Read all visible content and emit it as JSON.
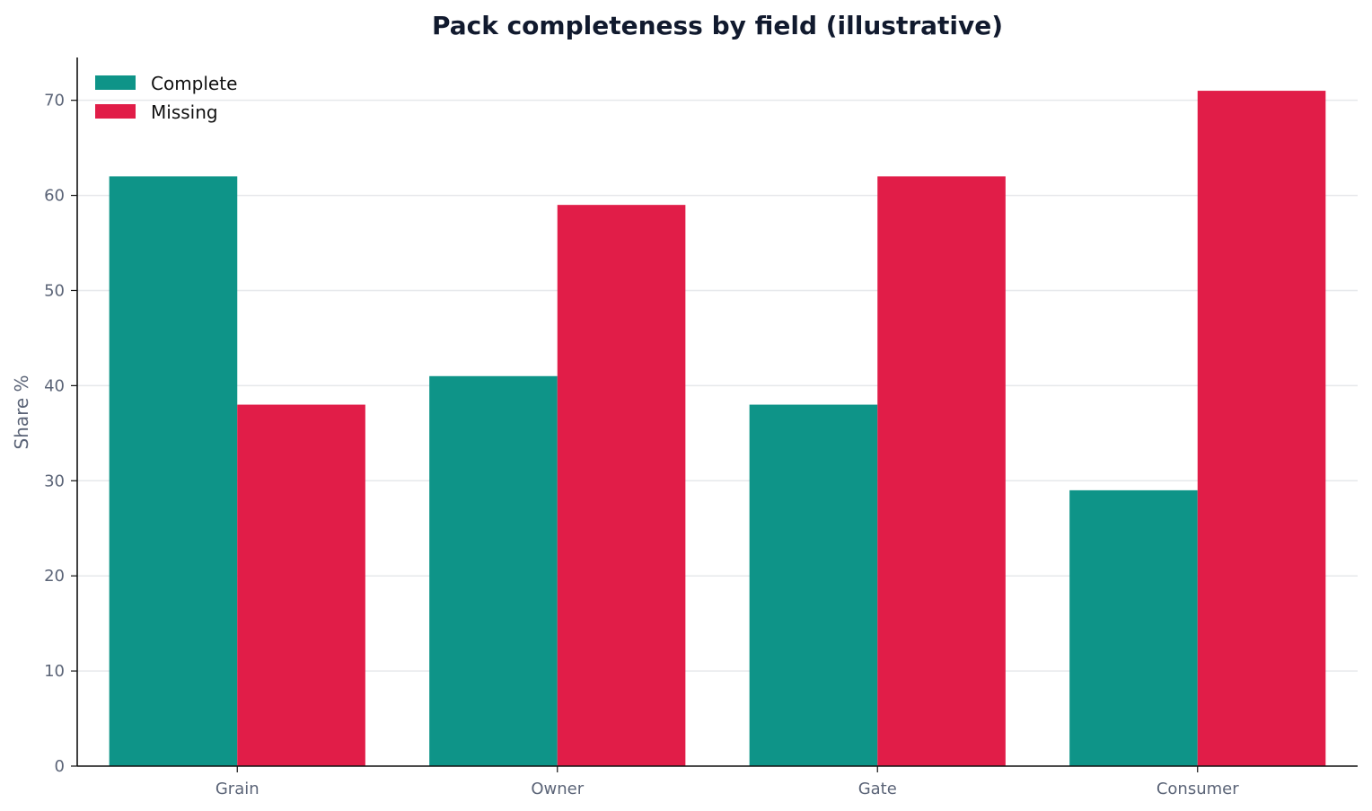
{
  "chart_data": {
    "type": "bar",
    "title": "Pack completeness by field (illustrative)",
    "xlabel": "",
    "ylabel": "Share %",
    "categories": [
      "Grain",
      "Owner",
      "Gate",
      "Consumer"
    ],
    "series": [
      {
        "name": "Complete",
        "values": [
          62,
          41,
          38,
          29
        ],
        "color": "#0e9488"
      },
      {
        "name": "Missing",
        "values": [
          38,
          59,
          62,
          71
        ],
        "color": "#e11d48"
      }
    ],
    "ylim": [
      0,
      74.5
    ],
    "yticks": [
      0,
      10,
      20,
      30,
      40,
      50,
      60,
      70
    ],
    "grid": true,
    "legend_position": "top-left"
  }
}
